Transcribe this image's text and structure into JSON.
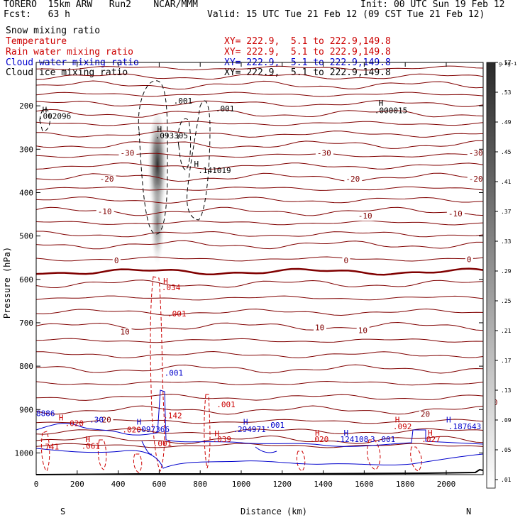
{
  "header": {
    "model": "TORERO  15km ARW   Run2    NCAR/MMM",
    "init": "Init: 00 UTC Sun 19 Feb 12",
    "fcst": "Fcst:   63 h",
    "valid": "Valid: 15 UTC Tue 21 Feb 12 (09 CST Tue 21 Feb 12)"
  },
  "fields": [
    {
      "name": "Snow mixing ratio",
      "xy": "",
      "color": "#000000"
    },
    {
      "name": "Temperature",
      "xy": "XY= 222.9,  5.1 to 222.9,149.8",
      "color": "#cc0000"
    },
    {
      "name": "Rain water mixing ratio",
      "xy": "XY= 222.9,  5.1 to 222.9,149.8",
      "color": "#cc0000"
    },
    {
      "name": "Cloud water mixing ratio",
      "xy": "XY= 222.9,  5.1 to 222.9,149.8",
      "color": "#0000cc"
    },
    {
      "name": "Cloud ice mixing ratio",
      "xy": "XY= 222.9,  5.1 to 222.9,149.8",
      "color": "#000000"
    }
  ],
  "colorbar": {
    "unit": "g kg-1",
    "levels": [
      ".01",
      ".05",
      ".09",
      ".13",
      ".17",
      ".21",
      ".25",
      ".29",
      ".33",
      ".37",
      ".41",
      ".45",
      ".49",
      ".53",
      ".57"
    ]
  },
  "chart_data": {
    "type": "contour",
    "xlabel": "Distance (km)",
    "ylabel": "Pressure (hPa)",
    "xlim": [
      0,
      2180
    ],
    "ylim": [
      1050,
      100
    ],
    "xticks": [
      0,
      200,
      400,
      600,
      800,
      1000,
      1200,
      1400,
      1600,
      1800,
      2000
    ],
    "yticks": [
      200,
      300,
      400,
      500,
      600,
      700,
      800,
      900,
      1000
    ],
    "left_end_label": "S",
    "right_end_label": "N",
    "temperature_labels": [
      {
        "text": "-30",
        "x": 410,
        "p": 315
      },
      {
        "text": "-30",
        "x": 1370,
        "p": 315
      },
      {
        "text": "-30",
        "x": 2110,
        "p": 315
      },
      {
        "text": "-20",
        "x": 310,
        "p": 375
      },
      {
        "text": "-20",
        "x": 1510,
        "p": 375
      },
      {
        "text": "-20",
        "x": 2110,
        "p": 375
      },
      {
        "text": "-10",
        "x": 300,
        "p": 450
      },
      {
        "text": "-10",
        "x": 1570,
        "p": 460
      },
      {
        "text": "-10",
        "x": 2010,
        "p": 455
      },
      {
        "text": "0",
        "x": 380,
        "p": 563
      },
      {
        "text": "0",
        "x": 1500,
        "p": 563
      },
      {
        "text": "0",
        "x": 2100,
        "p": 560
      },
      {
        "text": "10",
        "x": 410,
        "p": 727
      },
      {
        "text": "10",
        "x": 1360,
        "p": 717
      },
      {
        "text": "10",
        "x": 1570,
        "p": 724
      },
      {
        "text": "20",
        "x": 320,
        "p": 930
      },
      {
        "text": "20",
        "x": 1875,
        "p": 917
      },
      {
        "text": "20",
        "x": 2205,
        "p": 890
      }
    ],
    "cloud_ice_labels": [
      {
        "text": "H",
        "x": 30,
        "p": 215
      },
      {
        "text": ".002096",
        "x": 10,
        "p": 230
      },
      {
        "text": "H",
        "x": 590,
        "p": 260
      },
      {
        "text": ".093305",
        "x": 580,
        "p": 275
      },
      {
        "text": "H",
        "x": 770,
        "p": 340
      },
      {
        "text": ".141019",
        "x": 790,
        "p": 355
      },
      {
        "text": ".001",
        "x": 670,
        "p": 195
      },
      {
        "text": ".001",
        "x": 875,
        "p": 213
      },
      {
        "text": "H",
        "x": 1670,
        "p": 200
      },
      {
        "text": ".000015",
        "x": 1650,
        "p": 217
      }
    ],
    "rain_labels": [
      {
        "text": "H",
        "x": 620,
        "p": 610
      },
      {
        "text": ".034",
        "x": 612,
        "p": 625
      },
      {
        "text": ".001",
        "x": 640,
        "p": 685
      },
      {
        "text": ".001",
        "x": 880,
        "p": 895
      },
      {
        "text": ".142",
        "x": 620,
        "p": 920
      },
      {
        "text": ".020",
        "x": 140,
        "p": 938
      },
      {
        "text": "H",
        "x": 110,
        "p": 925
      },
      {
        "text": "H",
        "x": 240,
        "p": 975
      },
      {
        "text": ".061",
        "x": 220,
        "p": 990
      },
      {
        "text": ".741",
        "x": 20,
        "p": 992
      },
      {
        "text": ".020",
        "x": 420,
        "p": 953
      },
      {
        "text": ".001",
        "x": 570,
        "p": 985
      },
      {
        "text": "H",
        "x": 870,
        "p": 962
      },
      {
        "text": ".039",
        "x": 860,
        "p": 975
      },
      {
        "text": "H",
        "x": 1360,
        "p": 960
      },
      {
        "text": ".020",
        "x": 1335,
        "p": 975
      },
      {
        "text": "H",
        "x": 1750,
        "p": 930
      },
      {
        "text": ".092",
        "x": 1740,
        "p": 945
      },
      {
        "text": "H",
        "x": 1910,
        "p": 960
      },
      {
        "text": ".027",
        "x": 1880,
        "p": 975
      }
    ],
    "cloud_water_labels": [
      {
        "text": ".001",
        "x": 625,
        "p": 822
      },
      {
        "text": ".097366",
        "x": 490,
        "p": 952
      },
      {
        "text": "H",
        "x": 490,
        "p": 935
      },
      {
        "text": "8886",
        "x": 0,
        "p": 915
      },
      {
        "text": ".30",
        "x": 260,
        "p": 930
      },
      {
        "text": "H",
        "x": 1010,
        "p": 935
      },
      {
        "text": ".294971",
        "x": 960,
        "p": 952
      },
      {
        "text": ".001",
        "x": 1120,
        "p": 942
      },
      {
        "text": "H",
        "x": 1500,
        "p": 960
      },
      {
        "text": ".124108",
        "x": 1460,
        "p": 975
      },
      {
        "text": "3",
        "x": 1630,
        "p": 975
      },
      {
        "text": ".001",
        "x": 1660,
        "p": 975
      },
      {
        "text": "H",
        "x": 2000,
        "p": 930
      },
      {
        "text": ".187643",
        "x": 2010,
        "p": 945
      }
    ]
  }
}
